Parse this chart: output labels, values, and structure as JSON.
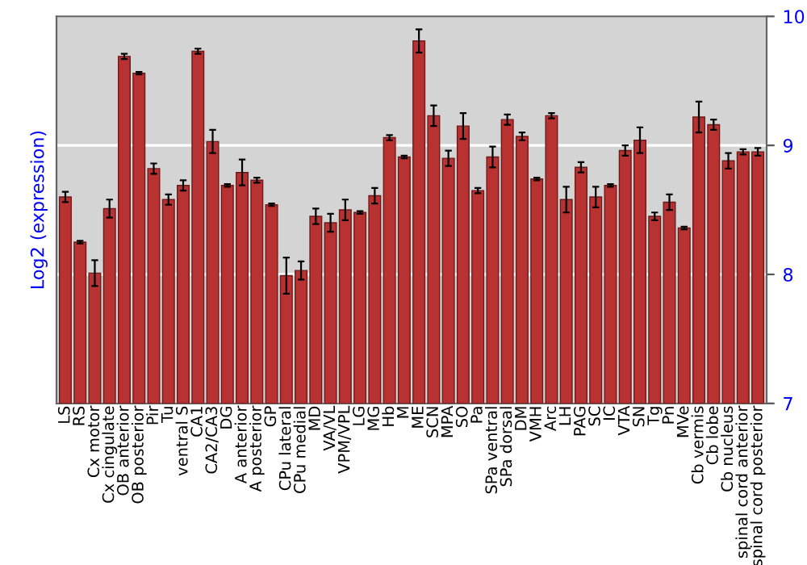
{
  "chart_data": {
    "type": "bar",
    "ylabel": "Log2 (expression)",
    "categories": [
      "LS",
      "RS",
      "Cx motor",
      "Cx cingulate",
      "OB anterior",
      "OB posterior",
      "Pir",
      "Tu",
      "ventral S",
      "CA1",
      "CA2/CA3",
      "DG",
      "A anterior",
      "A posterior",
      "GP",
      "CPu lateral",
      "CPu medial",
      "MD",
      "VA/VL",
      "VPM/VPL",
      "LG",
      "MG",
      "Hb",
      "M",
      "ME",
      "SCN",
      "MPA",
      "SO",
      "Pa",
      "SPa ventral",
      "SPa dorsal",
      "DM",
      "VMH",
      "Arc",
      "LH",
      "PAG",
      "SC",
      "IC",
      "VTA",
      "SN",
      "Tg",
      "Pn",
      "MVe",
      "Cb vermis",
      "Cb lobe",
      "Cb nucleus",
      "spinal cord anterior",
      "spinal cord posterior"
    ],
    "values": [
      8.6,
      8.25,
      8.01,
      8.51,
      9.69,
      9.56,
      8.82,
      8.58,
      8.69,
      9.73,
      9.03,
      8.69,
      8.79,
      8.73,
      8.54,
      7.99,
      8.03,
      8.45,
      8.4,
      8.5,
      8.48,
      8.61,
      9.06,
      8.91,
      9.81,
      9.23,
      8.9,
      9.15,
      8.65,
      8.91,
      9.2,
      9.07,
      8.74,
      9.23,
      8.58,
      8.83,
      8.6,
      8.69,
      8.96,
      9.04,
      8.45,
      8.56,
      8.36,
      9.22,
      9.16,
      8.88,
      8.95,
      8.95
    ],
    "errors": [
      0.04,
      0.01,
      0.1,
      0.07,
      0.02,
      0.01,
      0.04,
      0.04,
      0.04,
      0.02,
      0.09,
      0.01,
      0.1,
      0.02,
      0.01,
      0.14,
      0.07,
      0.06,
      0.07,
      0.08,
      0.01,
      0.06,
      0.02,
      0.01,
      0.09,
      0.08,
      0.06,
      0.1,
      0.02,
      0.08,
      0.04,
      0.03,
      0.01,
      0.02,
      0.1,
      0.04,
      0.08,
      0.01,
      0.04,
      0.1,
      0.03,
      0.06,
      0.01,
      0.12,
      0.04,
      0.06,
      0.02,
      0.03
    ],
    "color": "#b83232",
    "ylim": [
      7,
      10
    ],
    "yticks": [
      7,
      8,
      9,
      10
    ],
    "grid": "y"
  }
}
